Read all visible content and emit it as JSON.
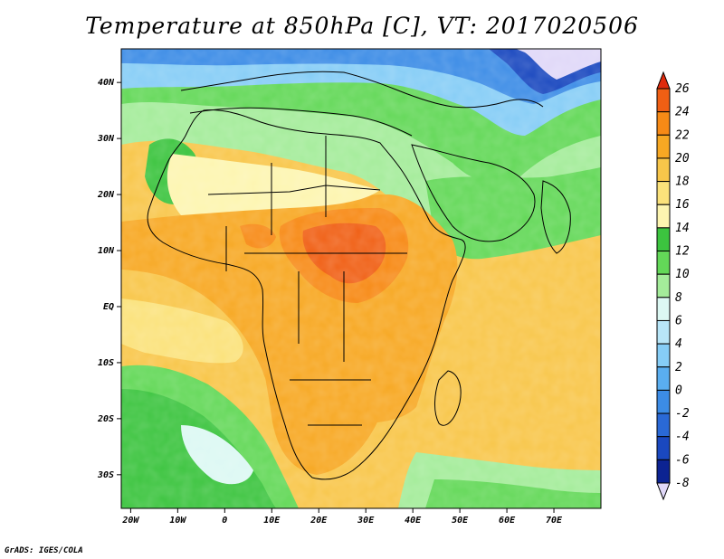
{
  "title": "Temperature at 850hPa [C], VT: 2017020506",
  "credit": "GrADS: IGES/COLA",
  "map": {
    "lat_labels": [
      "40N",
      "30N",
      "20N",
      "10N",
      "EQ",
      "10S",
      "20S",
      "30S"
    ],
    "lon_labels": [
      "20W",
      "10W",
      "0",
      "10E",
      "20E",
      "30E",
      "40E",
      "50E",
      "60E",
      "70E"
    ],
    "lon_range": [
      -22,
      80
    ],
    "lat_range": [
      -36,
      46
    ]
  },
  "colorbar": {
    "levels": [
      "26",
      "24",
      "22",
      "20",
      "18",
      "16",
      "14",
      "12",
      "10",
      "8",
      "6",
      "4",
      "2",
      "0",
      "-2",
      "-4",
      "-6",
      "-8"
    ],
    "colors": [
      "#e02a0c",
      "#f05f14",
      "#f78a16",
      "#f7a823",
      "#f8c64a",
      "#fbe27b",
      "#fdf5b0",
      "#3cc43f",
      "#63d858",
      "#a4ec9a",
      "#dcf8f3",
      "#b8e6f8",
      "#86cdf6",
      "#5aaef0",
      "#3c8ce6",
      "#2a69d6",
      "#1a48bf",
      "#0c2392",
      "#e0d8f8"
    ]
  }
}
